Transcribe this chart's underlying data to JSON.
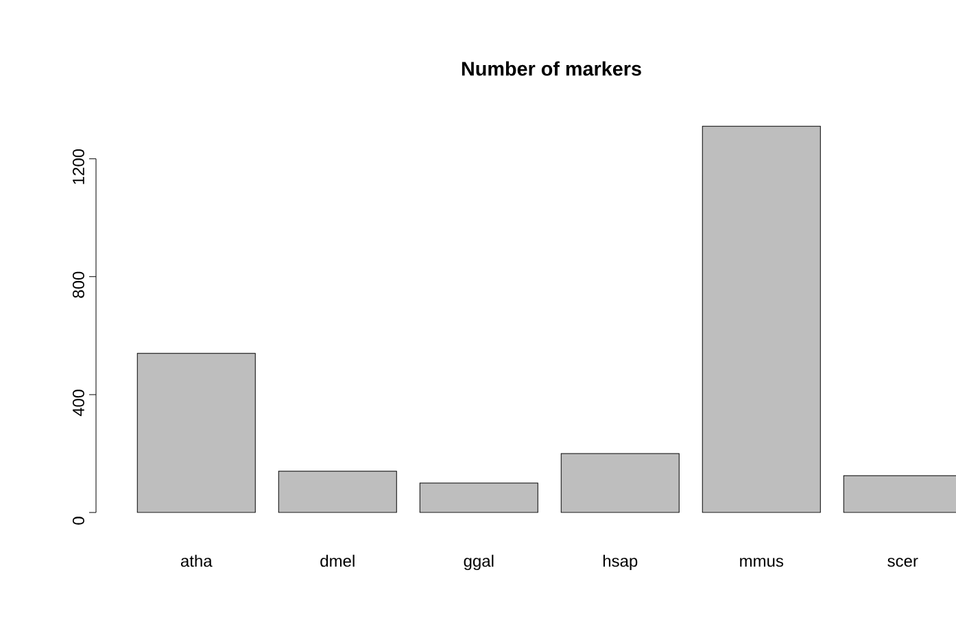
{
  "chart_data": {
    "type": "bar",
    "title": "Number of markers",
    "categories": [
      "atha",
      "dmel",
      "ggal",
      "hsap",
      "mmus",
      "scer"
    ],
    "values": [
      540,
      140,
      100,
      200,
      1310,
      125
    ],
    "color": "#bebebe",
    "ylim": [
      0,
      1320
    ],
    "yticks": [
      0,
      400,
      800,
      1200
    ]
  }
}
